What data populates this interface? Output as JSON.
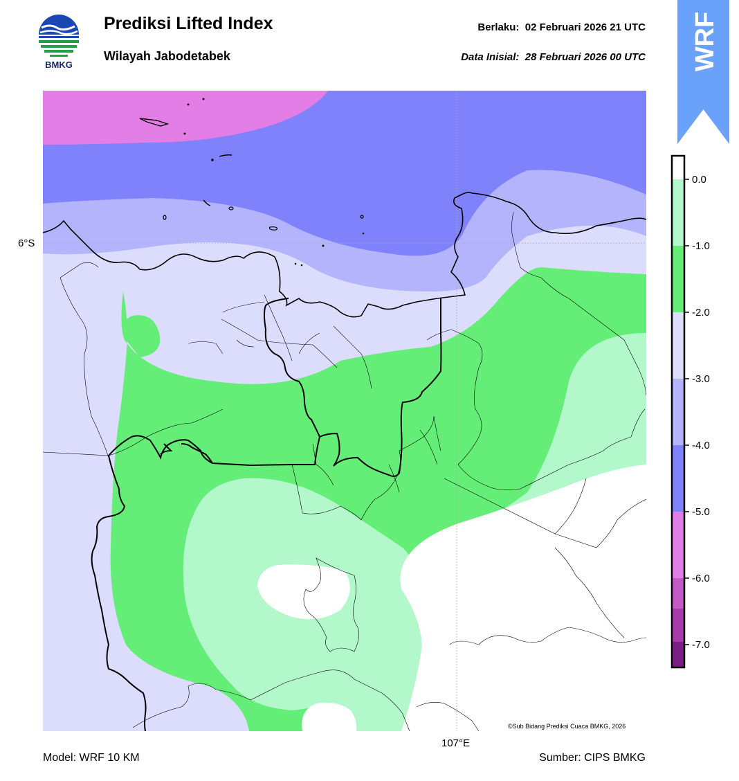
{
  "header": {
    "logo_text": "BMKG",
    "title": "Prediksi Lifted Index",
    "subtitle": "Wilayah Jabodetabek",
    "valid_label": "Berlaku:",
    "valid_value": "02 Februari 2026 21 UTC",
    "init_label": "Data Inisial:",
    "init_value": "28 Februari 2026 00 UTC",
    "banner_text": "WRF"
  },
  "map": {
    "lat_label": "6°S",
    "lon_label": "107°E",
    "copyright": "©Sub Bidang Prediksi Cuaca BMKG, 2026"
  },
  "colorbar": {
    "ticks": [
      "0.0",
      "-1.0",
      "-2.0",
      "-3.0",
      "-4.0",
      "-5.0",
      "-6.0",
      "-7.0"
    ],
    "colors": [
      "#ffffff",
      "#b3f8cb",
      "#64ee77",
      "#dcdcfd",
      "#b4b4fc",
      "#7f82fb",
      "#e27ee5",
      "#c659c8",
      "#a83aad",
      "#7c1d86"
    ]
  },
  "footer": {
    "model": "Model: WRF 10 KM",
    "source": "Sumber: CIPS BMKG"
  }
}
